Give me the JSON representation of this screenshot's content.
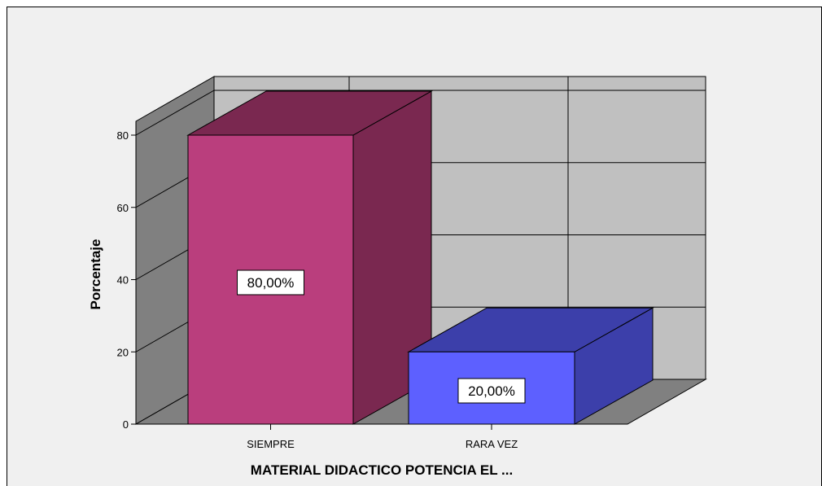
{
  "chart_data": {
    "type": "bar",
    "categories": [
      "SIEMPRE",
      "RARA VEZ"
    ],
    "values": [
      80,
      20
    ],
    "data_labels": [
      "80,00%",
      "20,00%"
    ],
    "bar_colors": [
      {
        "front": "#BA3E7D",
        "side": "#7A2850",
        "top": "#7A2850"
      },
      {
        "front": "#5D60FF",
        "side": "#3C3FAA",
        "top": "#3C3FAA"
      }
    ],
    "xlabel": "MATERIAL DIDACTICO POTENCIA EL ...",
    "ylabel": "Porcentaje",
    "ylim": [
      0,
      80
    ],
    "yticks": [
      0,
      20,
      40,
      60,
      80
    ],
    "grid": true,
    "style": "3d",
    "colors": {
      "frame_bg": "#f0f0f0",
      "back_wall": "#c0c0c0",
      "left_wall": "#808080",
      "floor": "#808080"
    }
  }
}
